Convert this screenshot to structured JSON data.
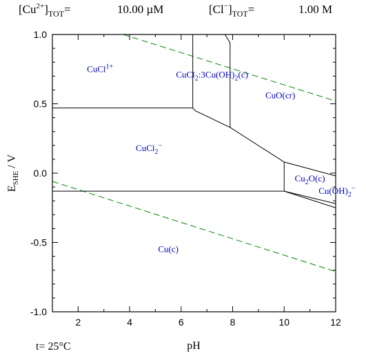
{
  "header": {
    "cu_label": "[Cu",
    "cu_charge": "2+",
    "cu_close": "]",
    "tot": "TOT",
    "cu_eq": "=",
    "cu_value": "10.00 µM",
    "cl_label": "[Cl",
    "cl_charge": "−",
    "cl_close": "]",
    "cl_eq": "=",
    "cl_value": "1.00 M"
  },
  "footer": {
    "temperature": "t= 25°C"
  },
  "colors": {
    "boundary": "#000000",
    "water_limit": "#1a8f1a",
    "region_label": "#0000c8"
  },
  "chart_data": {
    "type": "predominance-diagram",
    "xlabel": "pH",
    "ylabel_main": "E",
    "ylabel_sub": "SHE",
    "ylabel_rest": " / V",
    "xlim": [
      1,
      12
    ],
    "ylim": [
      -1.0,
      1.0
    ],
    "xticks": [
      2,
      4,
      6,
      8,
      10,
      12
    ],
    "yticks": [
      -1.0,
      -0.5,
      0.0,
      0.5,
      1.0
    ],
    "ytick_labels": [
      "-1.0",
      "-0.5",
      "0.0",
      "0.5",
      "1.0"
    ],
    "water_limits": [
      {
        "name": "upper",
        "points": [
          [
            3.75,
            1.0
          ],
          [
            12,
            0.52
          ]
        ]
      },
      {
        "name": "lower",
        "points": [
          [
            1,
            -0.06
          ],
          [
            12,
            -0.71
          ]
        ]
      }
    ],
    "boundaries": [
      {
        "points": [
          [
            1,
            0.47
          ],
          [
            6.45,
            0.47
          ],
          [
            6.55,
            0.45
          ],
          [
            7.9,
            0.33
          ],
          [
            10.0,
            0.08
          ],
          [
            12,
            -0.02
          ]
        ]
      },
      {
        "points": [
          [
            6.45,
            0.47
          ],
          [
            6.45,
            1.0
          ]
        ]
      },
      {
        "points": [
          [
            7.9,
            0.33
          ],
          [
            7.9,
            0.94
          ],
          [
            7.7,
            1.0
          ]
        ]
      },
      {
        "points": [
          [
            1,
            -0.13
          ],
          [
            10.0,
            -0.13
          ],
          [
            12,
            -0.25
          ]
        ]
      },
      {
        "points": [
          [
            10.0,
            0.08
          ],
          [
            10.0,
            -0.13
          ]
        ]
      },
      {
        "points": [
          [
            10.0,
            -0.13
          ],
          [
            12,
            -0.22
          ]
        ]
      }
    ],
    "regions": [
      {
        "name": "CuCl1+",
        "parts": [
          [
            "CuCl",
            "n"
          ],
          [
            "1+",
            "sup"
          ]
        ],
        "x": 2.85,
        "y": 0.73
      },
      {
        "name": "CuCl2:3Cu(OH)2(c)",
        "parts": [
          [
            "CuCl",
            "n"
          ],
          [
            "2",
            "sub"
          ],
          [
            ":3Cu(OH)",
            "n"
          ],
          [
            "2",
            "sub"
          ],
          [
            "(c)",
            "n"
          ]
        ],
        "x": 7.2,
        "y": 0.69
      },
      {
        "name": "CuO(cr)",
        "parts": [
          [
            "CuO(cr)",
            "n"
          ]
        ],
        "x": 9.85,
        "y": 0.54
      },
      {
        "name": "CuCl2-",
        "parts": [
          [
            "CuCl",
            "n"
          ],
          [
            "2",
            "sub"
          ],
          [
            "−",
            "sup"
          ]
        ],
        "x": 4.75,
        "y": 0.16
      },
      {
        "name": "Cu2O(c)",
        "parts": [
          [
            "Cu",
            "n"
          ],
          [
            "2",
            "sub"
          ],
          [
            "O(c)",
            "n"
          ]
        ],
        "x": 11.0,
        "y": -0.06
      },
      {
        "name": "Cu(OH)2-",
        "parts": [
          [
            "Cu(OH)",
            "n"
          ],
          [
            "2",
            "sub"
          ],
          [
            "−",
            "sup"
          ]
        ],
        "x": 12.05,
        "y": -0.15
      },
      {
        "name": "Cu(c)",
        "parts": [
          [
            "Cu(c)",
            "n"
          ]
        ],
        "x": 5.5,
        "y": -0.57
      }
    ]
  }
}
